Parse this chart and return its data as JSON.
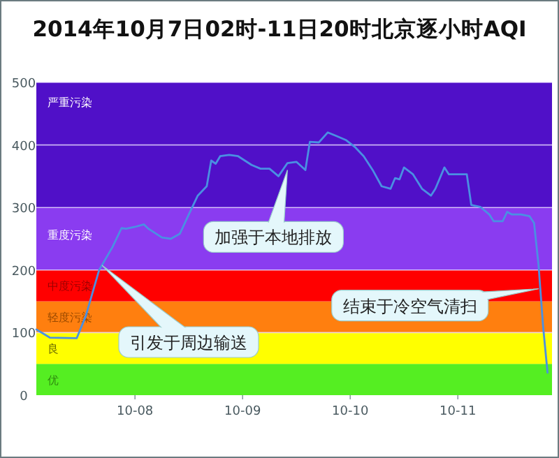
{
  "chart_data": {
    "type": "line",
    "title": "2014年10月7日02时-11日20时北京逐小时AQI",
    "x": [
      "2014-10-07T02:00",
      "2014-10-07T05:00",
      "2014-10-07T11:00",
      "2014-10-07T13:00",
      "2014-10-07T16:00",
      "2014-10-07T19:00",
      "2014-10-07T21:00",
      "2014-10-07T22:00",
      "2014-10-08T00:00",
      "2014-10-08T02:00",
      "2014-10-08T03:00",
      "2014-10-08T06:00",
      "2014-10-08T08:00",
      "2014-10-08T10:00",
      "2014-10-08T12:00",
      "2014-10-08T14:00",
      "2014-10-08T16:00",
      "2014-10-08T17:00",
      "2014-10-08T18:00",
      "2014-10-08T19:00",
      "2014-10-08T21:00",
      "2014-10-08T23:00",
      "2014-10-09T02:00",
      "2014-10-09T04:00",
      "2014-10-09T06:00",
      "2014-10-09T08:00",
      "2014-10-09T10:00",
      "2014-10-09T12:00",
      "2014-10-09T14:00",
      "2014-10-09T15:00",
      "2014-10-09T17:00",
      "2014-10-09T19:00",
      "2014-10-09T21:00",
      "2014-10-09T23:00",
      "2014-10-10T01:00",
      "2014-10-10T03:00",
      "2014-10-10T05:00",
      "2014-10-10T07:00",
      "2014-10-10T09:00",
      "2014-10-10T10:00",
      "2014-10-10T11:00",
      "2014-10-10T12:00",
      "2014-10-10T14:00",
      "2014-10-10T16:00",
      "2014-10-10T18:00",
      "2014-10-10T19:00",
      "2014-10-10T21:00",
      "2014-10-10T22:00",
      "2014-10-11T00:00",
      "2014-10-11T02:00",
      "2014-10-11T03:00",
      "2014-10-11T05:00",
      "2014-10-11T07:00",
      "2014-10-11T08:00",
      "2014-10-11T10:00",
      "2014-10-11T11:00",
      "2014-10-11T12:00",
      "2014-10-11T14:00",
      "2014-10-11T16:00",
      "2014-10-11T17:00",
      "2014-10-11T18:00",
      "2014-10-11T19:00",
      "2014-10-11T20:00"
    ],
    "series": [
      {
        "color": "#4a90e2",
        "values": [
          105,
          92,
          91,
          126,
          200,
          237,
          267,
          266,
          269,
          273,
          266,
          252,
          250,
          258,
          289,
          319,
          334,
          375,
          370,
          382,
          384,
          382,
          368,
          362,
          362,
          350,
          371,
          373,
          360,
          405,
          404,
          420,
          414,
          408,
          397,
          382,
          360,
          334,
          330,
          347,
          345,
          364,
          353,
          330,
          319,
          330,
          364,
          353,
          353,
          353,
          304,
          301,
          289,
          278,
          278,
          293,
          289,
          289,
          286,
          275,
          208,
          111,
          36
        ]
      }
    ],
    "xlim": [
      "2014-10-07T02:00",
      "2014-10-11T21:00"
    ],
    "xticks": [
      {
        "value": "2014-10-08",
        "label": "10-08"
      },
      {
        "value": "2014-10-09",
        "label": "10-09"
      },
      {
        "value": "2014-10-10",
        "label": "10-10"
      },
      {
        "value": "2014-10-11",
        "label": "10-11"
      }
    ],
    "ylim": [
      0,
      500
    ],
    "yticks": [
      0,
      100,
      200,
      300,
      400,
      500
    ],
    "grid": "y",
    "marker": "none",
    "line_style": "solid",
    "bands": [
      {
        "axis": "y",
        "from": 0,
        "to": 50,
        "label": "优",
        "color": "#55ee22"
      },
      {
        "axis": "y",
        "from": 50,
        "to": 100,
        "label": "良",
        "color": "#ffff00"
      },
      {
        "axis": "y",
        "from": 100,
        "to": 150,
        "label": "轻度污染",
        "color": "#ff7f0f"
      },
      {
        "axis": "y",
        "from": 150,
        "to": 200,
        "label": "中度污染",
        "color": "#ff0000"
      },
      {
        "axis": "y",
        "from": 200,
        "to": 300,
        "label": "重度污染",
        "color": "#8a3cf0"
      },
      {
        "axis": "y",
        "from": 300,
        "to": 500,
        "label": "严重污染",
        "color": "#5010c8"
      }
    ],
    "annotations": [
      "引发于周边输送",
      {
        "text": "加强于本地排放",
        "x": "2014-10-09T10:00",
        "y": 360
      },
      {
        "text": "结束于冷空气清扫",
        "x": "2014-10-11T18:00",
        "y": 170
      }
    ]
  }
}
